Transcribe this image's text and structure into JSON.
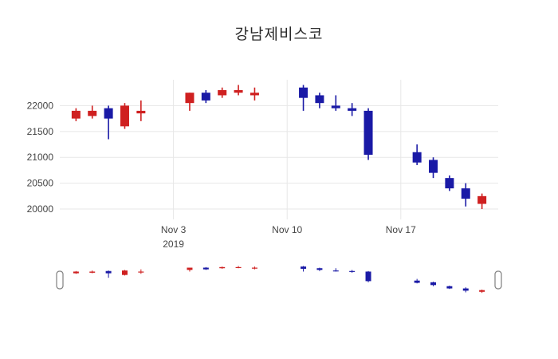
{
  "chart_data": {
    "type": "candlestick",
    "title": "강남제비스코",
    "x_ticks": [
      {
        "date": "2019-11-03",
        "label": "Nov 3",
        "sublabel": "2019"
      },
      {
        "date": "2019-11-10",
        "label": "Nov 10",
        "sublabel": ""
      },
      {
        "date": "2019-11-17",
        "label": "Nov 17",
        "sublabel": ""
      }
    ],
    "y_ticks": [
      20000,
      20500,
      21000,
      21500,
      22000
    ],
    "ylim": [
      19800,
      22500
    ],
    "x_range": [
      "2019-10-27",
      "2019-11-23"
    ],
    "legend": "none",
    "grid": "on",
    "colors": {
      "increasing": "#cf2020",
      "decreasing": "#1a1aa6",
      "grid": "#e7e7e7",
      "tick_text": "#444444",
      "handle_stroke": "#7f7f7f"
    },
    "candles": [
      {
        "date": "2019-10-28",
        "open": 21750,
        "high": 21950,
        "low": 21700,
        "close": 21900
      },
      {
        "date": "2019-10-29",
        "open": 21800,
        "high": 22000,
        "low": 21750,
        "close": 21900
      },
      {
        "date": "2019-10-30",
        "open": 21950,
        "high": 22000,
        "low": 21350,
        "close": 21750
      },
      {
        "date": "2019-10-31",
        "open": 21600,
        "high": 22050,
        "low": 21550,
        "close": 22000
      },
      {
        "date": "2019-11-01",
        "open": 21850,
        "high": 22100,
        "low": 21700,
        "close": 21900
      },
      {
        "date": "2019-11-04",
        "open": 22050,
        "high": 22250,
        "low": 21900,
        "close": 22250
      },
      {
        "date": "2019-11-05",
        "open": 22250,
        "high": 22300,
        "low": 22050,
        "close": 22100
      },
      {
        "date": "2019-11-06",
        "open": 22200,
        "high": 22350,
        "low": 22150,
        "close": 22300
      },
      {
        "date": "2019-11-07",
        "open": 22250,
        "high": 22400,
        "low": 22200,
        "close": 22300
      },
      {
        "date": "2019-11-08",
        "open": 22200,
        "high": 22350,
        "low": 22100,
        "close": 22250
      },
      {
        "date": "2019-11-11",
        "open": 22350,
        "high": 22400,
        "low": 21900,
        "close": 22150
      },
      {
        "date": "2019-11-12",
        "open": 22200,
        "high": 22250,
        "low": 21950,
        "close": 22050
      },
      {
        "date": "2019-11-13",
        "open": 22000,
        "high": 22200,
        "low": 21900,
        "close": 21950
      },
      {
        "date": "2019-11-14",
        "open": 21950,
        "high": 22050,
        "low": 21800,
        "close": 21900
      },
      {
        "date": "2019-11-15",
        "open": 21900,
        "high": 21950,
        "low": 20950,
        "close": 21050
      },
      {
        "date": "2019-11-18",
        "open": 21100,
        "high": 21250,
        "low": 20850,
        "close": 20900
      },
      {
        "date": "2019-11-19",
        "open": 20950,
        "high": 21000,
        "low": 20600,
        "close": 20700
      },
      {
        "date": "2019-11-20",
        "open": 20600,
        "high": 20650,
        "low": 20350,
        "close": 20400
      },
      {
        "date": "2019-11-21",
        "open": 20400,
        "high": 20500,
        "low": 20050,
        "close": 20200
      },
      {
        "date": "2019-11-22",
        "open": 20100,
        "high": 20300,
        "low": 20000,
        "close": 20250
      }
    ]
  }
}
